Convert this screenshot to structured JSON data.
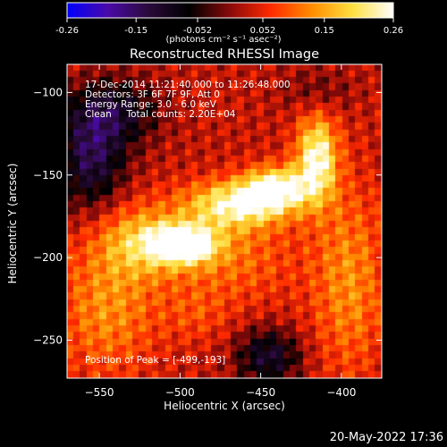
{
  "colorbar": {
    "tick_labels": [
      "-0.26",
      "-0.15",
      "-0.052",
      "0.052",
      "0.15",
      "0.26"
    ],
    "tick_values": [
      -0.26,
      -0.15,
      -0.052,
      0.052,
      0.15,
      0.26
    ],
    "units": "(photons cm⁻² s⁻¹ asec⁻²)",
    "range": [
      -0.26,
      0.26
    ],
    "colors": [
      "#0000ff",
      "#4a0aa8",
      "#2a0a3a",
      "#000000",
      "#8a0a0a",
      "#ff2a00",
      "#ff8c00",
      "#ffe040",
      "#ffffff"
    ]
  },
  "plot": {
    "title": "Reconstructed RHESSI Image",
    "info_lines": [
      "17-Dec-2014 11:21:40.000 to 11:26:48.000",
      "Detectors: 3F 6F 7F 9F, Att 0",
      "Energy Range: 3.0 - 6.0 keV",
      "Clean     Total counts: 2.20E+04"
    ],
    "peak_text": "Position of Peak = [-499,-193]",
    "timestamp": "20-May-2022 17:36"
  },
  "chart_data": {
    "type": "heatmap",
    "title": "Reconstructed RHESSI Image",
    "xlabel": "Heliocentric X (arcsec)",
    "ylabel": "Heliocentric Y (arcsec)",
    "xlim": [
      -570,
      -375
    ],
    "ylim": [
      -273,
      -83
    ],
    "x_ticks": [
      -550,
      -500,
      -450,
      -400
    ],
    "x_tick_labels": [
      "−550",
      "−500",
      "−450",
      "−400"
    ],
    "y_ticks": [
      -100,
      -150,
      -200,
      -250
    ],
    "y_tick_labels": [
      "−100",
      "−150",
      "−200",
      "−250"
    ],
    "value_range": [
      -0.26,
      0.26
    ],
    "peak_position": [
      -499,
      -193
    ],
    "features": [
      {
        "x": -498,
        "y": -192,
        "sx": 14,
        "sy": 8,
        "amp": 0.28
      },
      {
        "x": -465,
        "y": -168,
        "sx": 22,
        "sy": 10,
        "amp": 0.2
      },
      {
        "x": -440,
        "y": -158,
        "sx": 14,
        "sy": 9,
        "amp": 0.22
      },
      {
        "x": -415,
        "y": -140,
        "sx": 9,
        "sy": 18,
        "amp": 0.22
      },
      {
        "x": -525,
        "y": -190,
        "sx": 18,
        "sy": 15,
        "amp": 0.12
      },
      {
        "x": -545,
        "y": -230,
        "sx": 22,
        "sy": 30,
        "amp": 0.1
      },
      {
        "x": -395,
        "y": -215,
        "sx": 16,
        "sy": 40,
        "amp": 0.1
      },
      {
        "x": -470,
        "y": -200,
        "sx": 30,
        "sy": 20,
        "amp": 0.08
      },
      {
        "x": -555,
        "y": -140,
        "sx": 15,
        "sy": 22,
        "amp": -0.16
      },
      {
        "x": -540,
        "y": -112,
        "sx": 20,
        "sy": 14,
        "amp": -0.12
      },
      {
        "x": -445,
        "y": -260,
        "sx": 14,
        "sy": 12,
        "amp": -0.14
      },
      {
        "x": -415,
        "y": -100,
        "sx": 16,
        "sy": 10,
        "amp": -0.05
      },
      {
        "x": -490,
        "y": -235,
        "sx": 14,
        "sy": 12,
        "amp": 0.04
      }
    ]
  }
}
